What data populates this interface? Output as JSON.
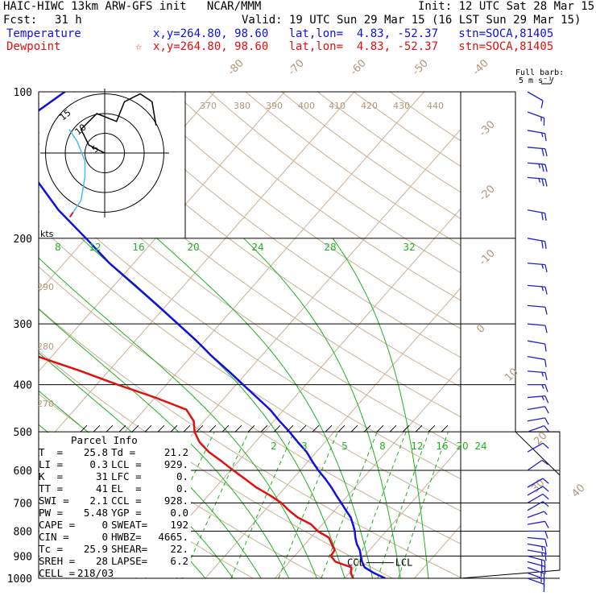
{
  "header": {
    "title_left": "HAIC-HIWC 13km ARW-GFS init   NCAR/MMM",
    "init": "Init: 12 UTC Sat 28 Mar 15",
    "fcst_label": "Fcst:",
    "fcst_value": "31 h",
    "valid": "Valid: 19 UTC Sun 29 Mar 15 (16 LST Sun 29 Mar 15)",
    "temp_label": "Temperature",
    "temp_info": "x,y=264.80, 98.60   lat,lon=  4.83, -52.37   stn=SOCA,81405",
    "dew_label": "Dewpoint",
    "dew_info": "x,y=264.80, 98.60   lat,lon=  4.83, -52.37   stn=SOCA,81405",
    "dew_marker": "☆"
  },
  "colors": {
    "temperature": "#1010e0",
    "dewpoint": "#e01010",
    "isotherm": "#c8b096",
    "mixing_ratio": "#20b020",
    "wind": "#2020d0",
    "hodograph_trace": "#000000",
    "hodograph_low": "#40c0f0",
    "text_isotherm": "#b49678"
  },
  "barb_legend": {
    "line1": "Full barb:",
    "line2": "5 m s⁻¹"
  },
  "hodograph": {
    "units": "kts",
    "rings": [
      "5",
      "10",
      "15"
    ]
  },
  "parcel": {
    "title": "Parcel Info",
    "rows": [
      [
        "T  =",
        "25.8",
        "Td =",
        "21.2"
      ],
      [
        "LI =",
        "0.3",
        "LCL =",
        "929."
      ],
      [
        "K  =",
        "31",
        "LFC =",
        "0."
      ],
      [
        "TT =",
        "41",
        "EL  =",
        "0."
      ],
      [
        "SWI =",
        "2.1",
        "CCL =",
        "928."
      ],
      [
        "PW =",
        "5.48",
        "YGP =",
        "0.0"
      ],
      [
        "CAPE =",
        "0",
        "SWEAT=",
        "192"
      ],
      [
        "CIN =",
        "0",
        "HWBZ=",
        "4665."
      ],
      [
        "Tc =",
        "25.9",
        "SHEAR=",
        "22."
      ],
      [
        "SREH =",
        "28",
        "LAPSE=",
        "6.2"
      ],
      [
        "CELL =",
        "218/03",
        "",
        ""
      ]
    ]
  },
  "ccl_label": "CCL",
  "lcl_label": "LCL",
  "chart_data": {
    "type": "line",
    "pressure_ticks": [
      "100",
      "200",
      "300",
      "400",
      "500",
      "600",
      "700",
      "800",
      "900",
      "1000"
    ],
    "isotherm_labels": [
      "-80",
      "-70",
      "-60",
      "-50",
      "-40",
      "-30",
      "-20",
      "-10",
      "0",
      "10",
      "20",
      "30",
      "40"
    ],
    "theta_labels": [
      "370",
      "380",
      "390",
      "400",
      "410",
      "420",
      "430",
      "440",
      "290",
      "280",
      "270"
    ],
    "mixing_ratio_upper": [
      "8",
      "12",
      "16",
      "20",
      "24",
      "28",
      "32"
    ],
    "mixing_ratio_lower": [
      "2",
      "3",
      "5",
      "8",
      "12",
      "16",
      "20",
      "24"
    ],
    "series": [
      {
        "name": "Temperature",
        "p": [
          1000,
          975,
          950,
          925,
          900,
          875,
          850,
          825,
          800,
          775,
          750,
          725,
          700,
          675,
          650,
          625,
          600,
          575,
          550,
          525,
          500,
          475,
          450,
          425,
          400,
          375,
          350,
          325,
          300,
          275,
          250,
          225,
          200,
          175,
          150,
          125,
          110,
          100
        ],
        "t": [
          25.8,
          23.5,
          21.5,
          20.4,
          19.5,
          18.6,
          17.4,
          16.4,
          15.5,
          14.4,
          13.2,
          11.6,
          10.0,
          8.3,
          6.6,
          4.7,
          2.6,
          0.6,
          -1.4,
          -3.9,
          -6.4,
          -9.2,
          -12.0,
          -15.4,
          -19.0,
          -22.8,
          -27.0,
          -31.2,
          -36.0,
          -41.2,
          -47.0,
          -53.5,
          -60.0,
          -67.5,
          -75.0,
          -81.0,
          -83.0,
          -81.5
        ]
      },
      {
        "name": "Dewpoint",
        "p": [
          1000,
          975,
          950,
          925,
          900,
          875,
          850,
          825,
          800,
          775,
          750,
          725,
          700,
          675,
          650,
          625,
          600,
          575,
          550,
          525,
          500,
          475,
          450,
          425,
          400,
          375,
          350,
          325,
          300,
          275,
          250,
          225,
          200,
          175,
          150,
          125,
          110,
          100
        ],
        "t": [
          21.2,
          20.2,
          19.6,
          16.6,
          15.2,
          15.0,
          13.8,
          12.6,
          10.2,
          8.4,
          5.6,
          3.4,
          1.4,
          -1.2,
          -4.2,
          -6.8,
          -9.6,
          -12.4,
          -15.4,
          -18.0,
          -20.0,
          -21.5,
          -24.0,
          -30.0,
          -37.0,
          -44.0,
          -52.0,
          -62.0,
          -74.0,
          -78.0,
          -82.0,
          -83.0,
          -82.5,
          -86.0,
          -93.0,
          -98.0,
          -98.0,
          -97.0
        ]
      }
    ],
    "wind": {
      "p": [
        1000,
        975,
        950,
        925,
        900,
        875,
        850,
        825,
        800,
        775,
        750,
        725,
        700,
        675,
        650,
        600,
        550,
        500,
        475,
        450,
        425,
        400,
        375,
        350,
        325,
        300,
        275,
        250,
        225,
        200,
        175,
        150,
        140,
        130,
        120,
        110,
        100
      ],
      "speed_ms": [
        7,
        8,
        9,
        10,
        10,
        9,
        8,
        7,
        6,
        5,
        4,
        5,
        6,
        6,
        6,
        6,
        5,
        6,
        7,
        7,
        8,
        8,
        8,
        7,
        7,
        7,
        7,
        8,
        9,
        10,
        12,
        14,
        13,
        11,
        9,
        8,
        7
      ],
      "dir_deg": [
        110,
        110,
        110,
        105,
        105,
        100,
        100,
        95,
        90,
        80,
        70,
        60,
        60,
        60,
        60,
        55,
        60,
        70,
        80,
        80,
        85,
        90,
        95,
        100,
        100,
        95,
        95,
        95,
        95,
        100,
        100,
        95,
        95,
        95,
        100,
        110,
        120
      ]
    },
    "hodograph_trace": [
      [
        0,
        0
      ],
      [
        -4,
        2
      ],
      [
        -6,
        6
      ],
      [
        -2,
        10
      ],
      [
        3,
        8
      ],
      [
        5,
        13
      ],
      [
        9,
        15
      ],
      [
        12,
        13
      ],
      [
        13,
        7
      ]
    ],
    "hodograph_low": [
      [
        -8,
        -15
      ],
      [
        -6,
        -12
      ],
      [
        -5,
        -6
      ],
      [
        -5,
        -2
      ],
      [
        -7,
        3
      ],
      [
        -9,
        6
      ]
    ]
  }
}
